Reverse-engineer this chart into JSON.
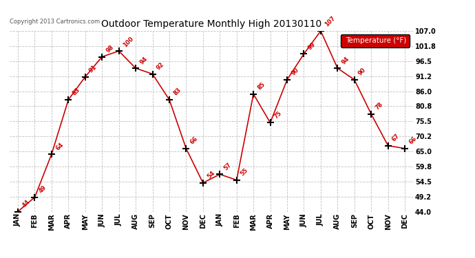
{
  "title": "Outdoor Temperature Monthly High 20130110",
  "copyright": "Copyright 2013 Cartronics.com",
  "legend_label": "Temperature (°F)",
  "x_labels": [
    "JAN",
    "FEB",
    "MAR",
    "APR",
    "MAY",
    "JUN",
    "JUL",
    "AUG",
    "SEP",
    "OCT",
    "NOV",
    "DEC",
    "JAN",
    "FEB",
    "MAR",
    "APR",
    "MAY",
    "JUN",
    "JUL",
    "AUG",
    "SEP",
    "OCT",
    "NOV",
    "DEC"
  ],
  "y_values": [
    44,
    49,
    64,
    83,
    91,
    98,
    100,
    94,
    92,
    83,
    66,
    54,
    57,
    55,
    85,
    75,
    90,
    99,
    107,
    94,
    90,
    78,
    67,
    66
  ],
  "y_labels": [
    "44.0",
    "49.2",
    "54.5",
    "59.8",
    "65.0",
    "70.2",
    "75.5",
    "80.8",
    "86.0",
    "91.2",
    "96.5",
    "101.8",
    "107.0"
  ],
  "y_ticks": [
    44.0,
    49.2,
    54.5,
    59.8,
    65.0,
    70.2,
    75.5,
    80.8,
    86.0,
    91.2,
    96.5,
    101.8,
    107.0
  ],
  "ylim": [
    44.0,
    107.0
  ],
  "line_color": "#cc0000",
  "marker_color": "#000000",
  "bg_color": "#ffffff",
  "grid_color": "#c0c0c0",
  "title_color": "#000000",
  "copyright_color": "#555555",
  "annotation_color": "#cc0000",
  "legend_bg": "#cc0000",
  "legend_text_color": "#ffffff"
}
